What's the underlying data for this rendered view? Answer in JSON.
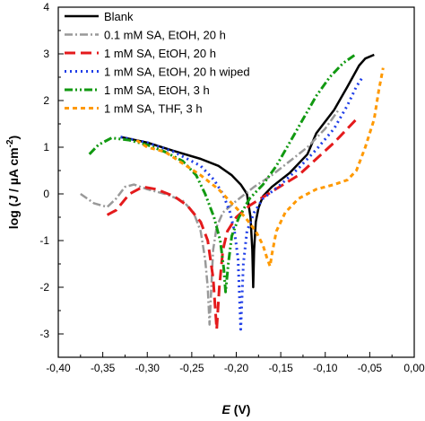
{
  "chart_data": {
    "type": "line",
    "xlabel": {
      "symbol": "E",
      "rest": " (V)"
    },
    "ylabel": {
      "prefix": "log (",
      "symbol": "J",
      "mid": " / µA cm",
      "sup": "-2",
      "suffix": ")"
    },
    "xlim": [
      -0.4,
      0.0
    ],
    "ylim": [
      -3.5,
      4
    ],
    "x_ticks": [
      "-0,40",
      "-0,35",
      "-0,30",
      "-0,25",
      "-0,20",
      "-0,15",
      "-0,10",
      "-0,05",
      "0,00"
    ],
    "y_ticks": [
      "-3",
      "-2",
      "-1",
      "0",
      "1",
      "2",
      "3",
      "4"
    ],
    "series": [
      {
        "name": "Blank",
        "color": "#000000",
        "dash": "",
        "width": 2.5,
        "points": [
          [
            -0.33,
            1.22
          ],
          [
            -0.3,
            1.1
          ],
          [
            -0.27,
            0.92
          ],
          [
            -0.24,
            0.75
          ],
          [
            -0.22,
            0.6
          ],
          [
            -0.205,
            0.4
          ],
          [
            -0.195,
            0.2
          ],
          [
            -0.188,
            0.0
          ],
          [
            -0.184,
            -0.5
          ],
          [
            -0.182,
            -1.2
          ],
          [
            -0.181,
            -2.0
          ],
          [
            -0.18,
            -1.2
          ],
          [
            -0.178,
            -0.6
          ],
          [
            -0.175,
            -0.3
          ],
          [
            -0.17,
            -0.05
          ],
          [
            -0.16,
            0.15
          ],
          [
            -0.14,
            0.45
          ],
          [
            -0.12,
            0.85
          ],
          [
            -0.11,
            1.3
          ],
          [
            -0.09,
            1.8
          ],
          [
            -0.075,
            2.3
          ],
          [
            -0.062,
            2.75
          ],
          [
            -0.055,
            2.9
          ],
          [
            -0.045,
            2.98
          ]
        ]
      },
      {
        "name": "0.1 mM SA, EtOH, 20 h",
        "color": "#999999",
        "dash": "9,3,2,3",
        "width": 2.5,
        "points": [
          [
            -0.375,
            0.0
          ],
          [
            -0.36,
            -0.2
          ],
          [
            -0.345,
            -0.28
          ],
          [
            -0.335,
            -0.1
          ],
          [
            -0.325,
            0.15
          ],
          [
            -0.315,
            0.2
          ],
          [
            -0.3,
            0.1
          ],
          [
            -0.28,
            0.0
          ],
          [
            -0.26,
            -0.15
          ],
          [
            -0.248,
            -0.4
          ],
          [
            -0.24,
            -0.8
          ],
          [
            -0.235,
            -1.4
          ],
          [
            -0.232,
            -2.0
          ],
          [
            -0.23,
            -2.8
          ],
          [
            -0.228,
            -2.0
          ],
          [
            -0.226,
            -1.2
          ],
          [
            -0.222,
            -0.7
          ],
          [
            -0.215,
            -0.4
          ],
          [
            -0.2,
            -0.15
          ],
          [
            -0.18,
            0.15
          ],
          [
            -0.16,
            0.4
          ],
          [
            -0.14,
            0.7
          ],
          [
            -0.12,
            1.0
          ],
          [
            -0.1,
            1.4
          ],
          [
            -0.085,
            1.8
          ]
        ]
      },
      {
        "name": "1 mM SA, EtOH, 20 h",
        "color": "#e41a1c",
        "dash": "12,6",
        "width": 3,
        "points": [
          [
            -0.345,
            -0.45
          ],
          [
            -0.335,
            -0.35
          ],
          [
            -0.32,
            0.0
          ],
          [
            -0.305,
            0.15
          ],
          [
            -0.29,
            0.1
          ],
          [
            -0.27,
            -0.05
          ],
          [
            -0.255,
            -0.25
          ],
          [
            -0.24,
            -0.6
          ],
          [
            -0.232,
            -1.0
          ],
          [
            -0.226,
            -1.8
          ],
          [
            -0.222,
            -2.9
          ],
          [
            -0.219,
            -2.0
          ],
          [
            -0.215,
            -1.2
          ],
          [
            -0.21,
            -0.8
          ],
          [
            -0.2,
            -0.5
          ],
          [
            -0.185,
            -0.25
          ],
          [
            -0.16,
            0.05
          ],
          [
            -0.13,
            0.4
          ],
          [
            -0.11,
            0.75
          ],
          [
            -0.09,
            1.1
          ],
          [
            -0.075,
            1.4
          ],
          [
            -0.065,
            1.6
          ]
        ]
      },
      {
        "name": "1 mM SA, EtOH, 20 h wiped",
        "color": "#1f3ee8",
        "dash": "2,4",
        "width": 3,
        "points": [
          [
            -0.33,
            1.22
          ],
          [
            -0.3,
            1.1
          ],
          [
            -0.27,
            0.9
          ],
          [
            -0.24,
            0.6
          ],
          [
            -0.225,
            0.3
          ],
          [
            -0.215,
            0.0
          ],
          [
            -0.207,
            -0.4
          ],
          [
            -0.202,
            -0.8
          ],
          [
            -0.198,
            -1.4
          ],
          [
            -0.195,
            -2.9
          ],
          [
            -0.192,
            -1.5
          ],
          [
            -0.188,
            -0.8
          ],
          [
            -0.18,
            -0.4
          ],
          [
            -0.17,
            -0.1
          ],
          [
            -0.15,
            0.2
          ],
          [
            -0.13,
            0.55
          ],
          [
            -0.11,
            0.95
          ],
          [
            -0.09,
            1.4
          ],
          [
            -0.075,
            1.9
          ],
          [
            -0.065,
            2.3
          ],
          [
            -0.058,
            2.5
          ]
        ]
      },
      {
        "name": "1 mM SA, EtOH, 3 h",
        "color": "#119911",
        "dash": "9,3,2,3,2,3",
        "width": 3,
        "points": [
          [
            -0.365,
            0.85
          ],
          [
            -0.355,
            1.05
          ],
          [
            -0.34,
            1.2
          ],
          [
            -0.32,
            1.15
          ],
          [
            -0.3,
            1.05
          ],
          [
            -0.28,
            0.9
          ],
          [
            -0.26,
            0.7
          ],
          [
            -0.245,
            0.4
          ],
          [
            -0.235,
            0.0
          ],
          [
            -0.225,
            -0.5
          ],
          [
            -0.218,
            -1.0
          ],
          [
            -0.214,
            -1.6
          ],
          [
            -0.212,
            -2.1
          ],
          [
            -0.209,
            -1.5
          ],
          [
            -0.205,
            -0.9
          ],
          [
            -0.197,
            -0.5
          ],
          [
            -0.185,
            -0.1
          ],
          [
            -0.17,
            0.2
          ],
          [
            -0.155,
            0.6
          ],
          [
            -0.14,
            1.1
          ],
          [
            -0.125,
            1.6
          ],
          [
            -0.11,
            2.1
          ],
          [
            -0.095,
            2.5
          ],
          [
            -0.08,
            2.8
          ],
          [
            -0.065,
            3.0
          ]
        ]
      },
      {
        "name": "1 mM SA, THF, 3 h",
        "color": "#ff9900",
        "dash": "5,4",
        "width": 3,
        "points": [
          [
            -0.312,
            1.15
          ],
          [
            -0.3,
            1.0
          ],
          [
            -0.28,
            0.9
          ],
          [
            -0.26,
            0.65
          ],
          [
            -0.24,
            0.4
          ],
          [
            -0.22,
            0.1
          ],
          [
            -0.205,
            -0.2
          ],
          [
            -0.19,
            -0.5
          ],
          [
            -0.178,
            -0.8
          ],
          [
            -0.17,
            -1.1
          ],
          [
            -0.165,
            -1.4
          ],
          [
            -0.162,
            -1.55
          ],
          [
            -0.16,
            -1.3
          ],
          [
            -0.155,
            -0.8
          ],
          [
            -0.145,
            -0.4
          ],
          [
            -0.13,
            -0.1
          ],
          [
            -0.11,
            0.1
          ],
          [
            -0.09,
            0.2
          ],
          [
            -0.075,
            0.3
          ],
          [
            -0.065,
            0.5
          ],
          [
            -0.055,
            1.0
          ],
          [
            -0.045,
            1.6
          ],
          [
            -0.04,
            2.2
          ],
          [
            -0.035,
            2.7
          ]
        ]
      }
    ],
    "legend_position": "top-left",
    "grid": false
  }
}
